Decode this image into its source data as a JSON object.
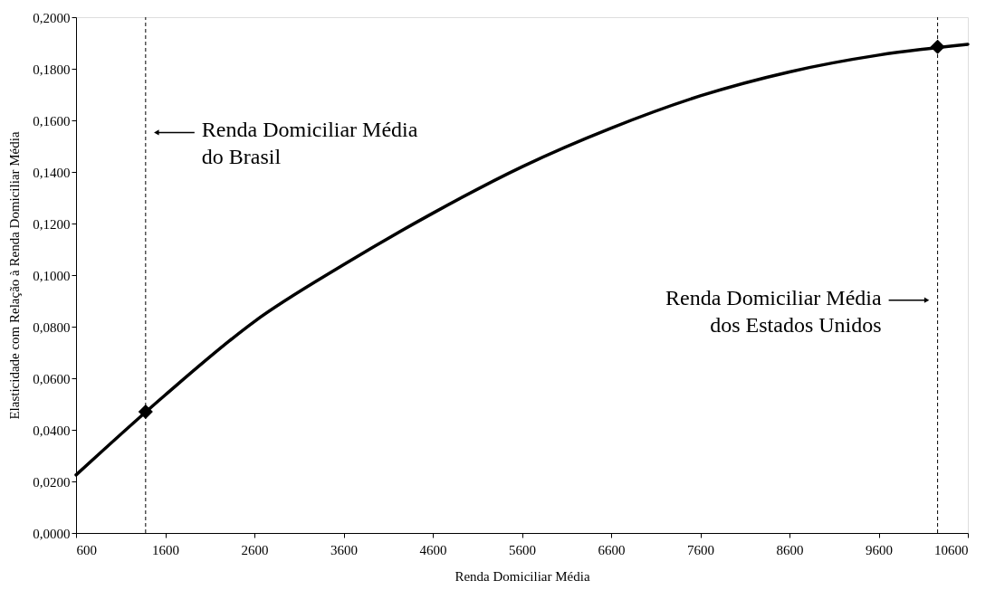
{
  "chart_data": {
    "type": "line",
    "xlabel": "Renda Domiciliar Média",
    "ylabel": "Elasticidade com Relação à Renda Domiciliar Média",
    "xlim": [
      600,
      10600
    ],
    "xticks": [
      600,
      1600,
      2600,
      3600,
      4600,
      5600,
      6600,
      7600,
      8600,
      9600,
      10600
    ],
    "ylim": [
      0,
      0.2
    ],
    "yticks": [
      {
        "value": 0,
        "label": "0,0000"
      },
      {
        "value": 0.02,
        "label": "0,0200"
      },
      {
        "value": 0.04,
        "label": "0,0400"
      },
      {
        "value": 0.06,
        "label": "0,0600"
      },
      {
        "value": 0.08,
        "label": "0,0800"
      },
      {
        "value": 0.1,
        "label": "0,1000"
      },
      {
        "value": 0.12,
        "label": "0,1200"
      },
      {
        "value": 0.14,
        "label": "0,1400"
      },
      {
        "value": 0.16,
        "label": "0,1600"
      },
      {
        "value": 0.18,
        "label": "0,1800"
      },
      {
        "value": 0.2,
        "label": "0,2000"
      }
    ],
    "grid": false,
    "series": [
      {
        "color": "#000000",
        "marker": "none",
        "line_style": "solid",
        "x": [
          600,
          1600,
          2600,
          3600,
          4600,
          5600,
          6600,
          7600,
          8600,
          9600,
          10600
        ],
        "values": [
          0.0225,
          0.0535,
          0.082,
          0.104,
          0.124,
          0.142,
          0.157,
          0.1695,
          0.1788,
          0.1853,
          0.1895
        ]
      },
      {
        "type": "scatter",
        "color": "#000000",
        "marker": "diamond",
        "x": [
          1380,
          10261
        ],
        "values": [
          0.047,
          0.1885
        ]
      }
    ],
    "ref_lines": [
      {
        "axis": "x",
        "value": 1380,
        "label": "Renda Domiciliar Média\ndo Brasil",
        "color": "#000000",
        "line_style": "dashed"
      },
      {
        "axis": "x",
        "value": 10261,
        "label": "Renda Domiciliar Média\ndos Estados Unidos",
        "color": "#000000",
        "line_style": "dashed"
      }
    ]
  }
}
